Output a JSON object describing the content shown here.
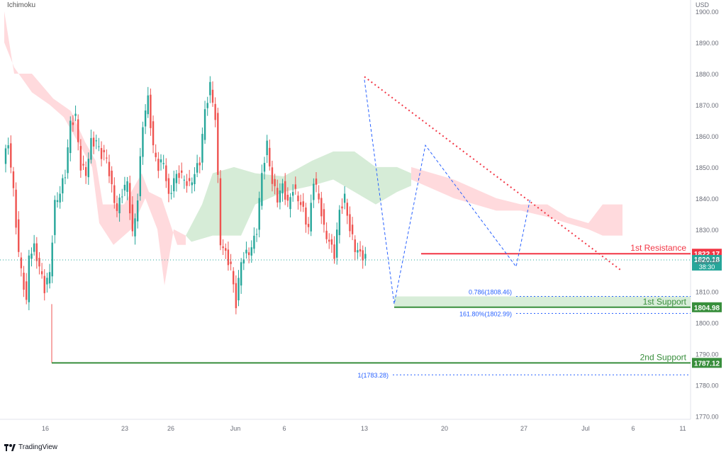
{
  "indicator": "Ichimoku",
  "currency": "USD",
  "branding": "TradingView",
  "colors": {
    "up": "#26a69a",
    "down": "#ef5350",
    "resistance": "#f23645",
    "support": "#388e3c",
    "cloud_bull": "#c8e6c9",
    "cloud_bear": "#ffcdd2",
    "trendline": "#f23645",
    "fib": "#2962ff"
  },
  "chart_data": {
    "type": "line",
    "title": "",
    "ylim": [
      1765,
      1905
    ],
    "y_ticks": [
      "1900.00",
      "1890.00",
      "1880.00",
      "1870.00",
      "1860.00",
      "1850.00",
      "1840.00",
      "1830.00",
      "1820.00",
      "1810.00",
      "1800.00",
      "1790.00",
      "1780.00",
      "1770.00"
    ],
    "x_ticks": [
      "16",
      "23",
      "26",
      "Jun",
      "6",
      "13",
      "20",
      "27",
      "Jul",
      "6",
      "11"
    ],
    "price_path": {
      "x_unit": "bars",
      "points": [
        [
          0,
          1851
        ],
        [
          2,
          1858
        ],
        [
          4,
          1842
        ],
        [
          6,
          1822
        ],
        [
          8,
          1812
        ],
        [
          9,
          1806
        ],
        [
          10,
          1822
        ],
        [
          12,
          1824
        ],
        [
          14,
          1818
        ],
        [
          16,
          1811
        ],
        [
          18,
          1816
        ],
        [
          20,
          1838
        ],
        [
          22,
          1842
        ],
        [
          24,
          1848
        ],
        [
          26,
          1864
        ],
        [
          28,
          1866
        ],
        [
          30,
          1850
        ],
        [
          32,
          1848
        ],
        [
          34,
          1858
        ],
        [
          36,
          1858
        ],
        [
          38,
          1854
        ],
        [
          40,
          1853
        ],
        [
          42,
          1843
        ],
        [
          44,
          1836
        ],
        [
          46,
          1842
        ],
        [
          48,
          1845
        ],
        [
          50,
          1828
        ],
        [
          52,
          1840
        ],
        [
          54,
          1864
        ],
        [
          56,
          1872
        ],
        [
          58,
          1856
        ],
        [
          60,
          1850
        ],
        [
          62,
          1852
        ],
        [
          64,
          1840
        ],
        [
          66,
          1846
        ],
        [
          68,
          1848
        ],
        [
          70,
          1846
        ],
        [
          72,
          1844
        ],
        [
          74,
          1848
        ],
        [
          76,
          1852
        ],
        [
          78,
          1868
        ],
        [
          80,
          1876
        ],
        [
          82,
          1866
        ],
        [
          84,
          1826
        ],
        [
          86,
          1822
        ],
        [
          88,
          1818
        ],
        [
          90,
          1806
        ],
        [
          92,
          1820
        ],
        [
          94,
          1822
        ],
        [
          96,
          1824
        ],
        [
          98,
          1830
        ],
        [
          100,
          1848
        ],
        [
          102,
          1857
        ],
        [
          104,
          1845
        ],
        [
          106,
          1840
        ],
        [
          108,
          1844
        ],
        [
          110,
          1838
        ],
        [
          112,
          1843
        ],
        [
          114,
          1840
        ],
        [
          116,
          1836
        ],
        [
          118,
          1830
        ],
        [
          120,
          1846
        ],
        [
          122,
          1840
        ],
        [
          124,
          1830
        ],
        [
          126,
          1826
        ],
        [
          128,
          1822
        ],
        [
          130,
          1836
        ],
        [
          132,
          1840
        ],
        [
          134,
          1830
        ],
        [
          136,
          1824
        ],
        [
          138,
          1822
        ],
        [
          140,
          1821
        ]
      ]
    },
    "levels": [
      {
        "label": "1st Resistance",
        "value": 1822.17,
        "price_tag": "1822.17"
      },
      {
        "label": "1st Support",
        "value": 1804.98,
        "price_tag": "1804.98"
      },
      {
        "label": "2nd Support",
        "value": 1787.12,
        "price_tag": "1787.12"
      }
    ],
    "fib_levels": [
      {
        "label": "0.786(1808.46)",
        "value": 1808.46
      },
      {
        "label": "161.80%(1802.99)",
        "value": 1802.99
      },
      {
        "label": "1(1783.28)",
        "value": 1783.28
      }
    ],
    "current_price": {
      "value": 1820.18,
      "label": "1820.18",
      "countdown": "38:30"
    },
    "trendline": {
      "from": [
        13,
        1879
      ],
      "to": [
        31,
        1817
      ]
    },
    "harmonic_pattern_points": [
      [
        13,
        1878
      ],
      [
        15,
        1806
      ],
      [
        18,
        1857
      ],
      [
        25,
        1818
      ],
      [
        27,
        1840
      ]
    ]
  }
}
